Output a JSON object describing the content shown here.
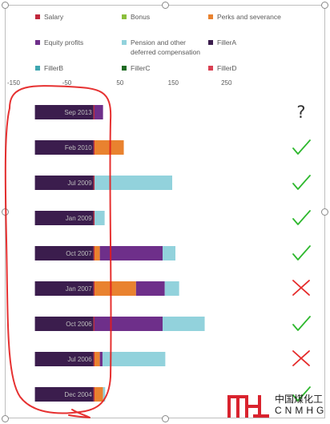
{
  "chart_data": {
    "type": "bar",
    "orientation": "horizontal",
    "stacked": true,
    "categories": [
      "Sep 2013",
      "Feb 2010",
      "Jul 2009",
      "Jan 2009",
      "Oct 2007",
      "Jan 2007",
      "Oct 2006",
      "Jul 2006",
      "Dec 2004"
    ],
    "series": [
      {
        "name": "Salary",
        "color": "#c0283c",
        "values": [
          2,
          2,
          2,
          2,
          2,
          2,
          2,
          2,
          2
        ]
      },
      {
        "name": "Bonus",
        "color": "#8bbf3c",
        "values": [
          0,
          0,
          0,
          0,
          0,
          0,
          0,
          0,
          0
        ]
      },
      {
        "name": "Perks and severance",
        "color": "#e9822f",
        "values": [
          0,
          55,
          0,
          0,
          10,
          78,
          0,
          10,
          16
        ]
      },
      {
        "name": "Equity profits",
        "color": "#6e2f8a",
        "values": [
          16,
          0,
          0,
          0,
          118,
          54,
          128,
          5,
          0
        ]
      },
      {
        "name": "Pension and other deferred compensation",
        "color": "#92d2dc",
        "values": [
          0,
          0,
          146,
          19,
          24,
          27,
          79,
          118,
          4
        ]
      },
      {
        "name": "FillerA",
        "color": "#3b1d4d",
        "values": [
          -110,
          -110,
          -110,
          -110,
          -110,
          -110,
          -110,
          -110,
          -110
        ]
      },
      {
        "name": "FillerB",
        "color": "#3fa6b0",
        "values": [
          0,
          0,
          0,
          0,
          0,
          0,
          0,
          0,
          0
        ]
      },
      {
        "name": "FillerC",
        "color": "#1e6b23",
        "values": [
          0,
          0,
          0,
          0,
          0,
          0,
          0,
          0,
          0
        ]
      },
      {
        "name": "FillerD",
        "color": "#d94052",
        "values": [
          0,
          0,
          0,
          0,
          0,
          0,
          0,
          0,
          0
        ]
      }
    ],
    "xlim": [
      -150,
      300
    ],
    "xticks": [
      -150,
      -50,
      50,
      150,
      250
    ],
    "xtick_labels": [
      "-150",
      "-50",
      "50",
      "150",
      "250"
    ],
    "grid": false,
    "legend_position": "top",
    "category_label_color": "#bfbfbf"
  },
  "annotations": {
    "marks": [
      "question",
      "check",
      "check",
      "check",
      "check",
      "cross",
      "check",
      "cross",
      "check"
    ],
    "question_text": "?",
    "check_color": "#2eb82e",
    "cross_color": "#e52a2a",
    "outline_color": "#e31b1b"
  },
  "watermark": {
    "chinese": "中国煤化工",
    "latin": "CNMHG",
    "logo_color": "#d9232e"
  }
}
